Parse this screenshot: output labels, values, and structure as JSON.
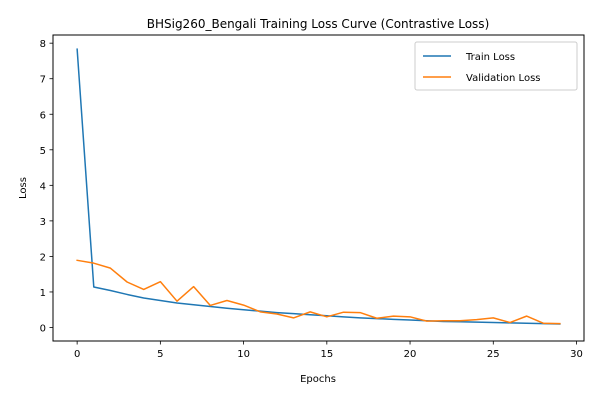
{
  "chart_data": {
    "type": "line",
    "title": "BHSig260_Bengali Training Loss Curve (Contrastive Loss)",
    "xlabel": "Epochs",
    "ylabel": "Loss",
    "xlim": [
      -1.45,
      30.45
    ],
    "ylim": [
      -0.38,
      8.23
    ],
    "xticks": [
      0,
      5,
      10,
      15,
      20,
      25,
      30
    ],
    "yticks": [
      0,
      1,
      2,
      3,
      4,
      5,
      6,
      7,
      8
    ],
    "grid": false,
    "legend_position": "top-right",
    "x": [
      0,
      1,
      2,
      3,
      4,
      5,
      6,
      7,
      8,
      9,
      10,
      11,
      12,
      13,
      14,
      15,
      16,
      17,
      18,
      19,
      20,
      21,
      22,
      23,
      24,
      25,
      26,
      27,
      28,
      29
    ],
    "series": [
      {
        "name": "Train Loss",
        "color": "#1f77b4",
        "values": [
          7.83,
          1.14,
          1.04,
          0.93,
          0.83,
          0.76,
          0.69,
          0.64,
          0.59,
          0.54,
          0.5,
          0.46,
          0.42,
          0.39,
          0.36,
          0.33,
          0.3,
          0.27,
          0.25,
          0.23,
          0.21,
          0.19,
          0.17,
          0.16,
          0.15,
          0.14,
          0.13,
          0.12,
          0.11,
          0.1
        ]
      },
      {
        "name": "Validation Loss",
        "color": "#ff7f0e",
        "values": [
          1.89,
          1.81,
          1.67,
          1.28,
          1.07,
          1.29,
          0.74,
          1.15,
          0.62,
          0.76,
          0.63,
          0.44,
          0.38,
          0.27,
          0.44,
          0.3,
          0.43,
          0.42,
          0.26,
          0.32,
          0.3,
          0.18,
          0.19,
          0.19,
          0.22,
          0.27,
          0.14,
          0.32,
          0.12,
          0.11
        ]
      }
    ]
  }
}
